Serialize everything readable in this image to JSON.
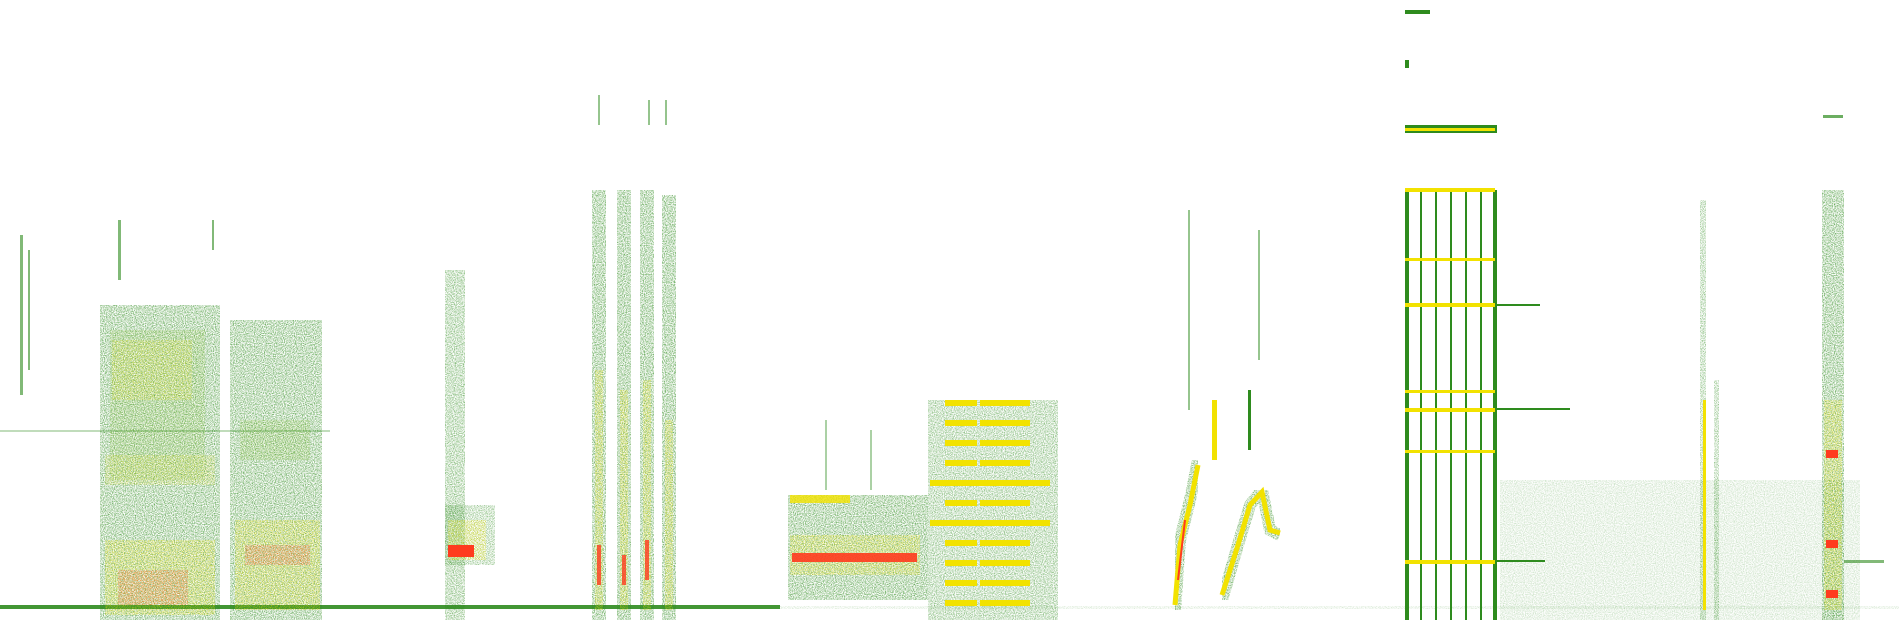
{
  "image": {
    "kind": "spectrogram",
    "background": "#ffffff",
    "palette": {
      "low": "#2e8b1e",
      "mid": "#7dbb1a",
      "high": "#f2e200",
      "peak": "#ff3b1e"
    }
  }
}
